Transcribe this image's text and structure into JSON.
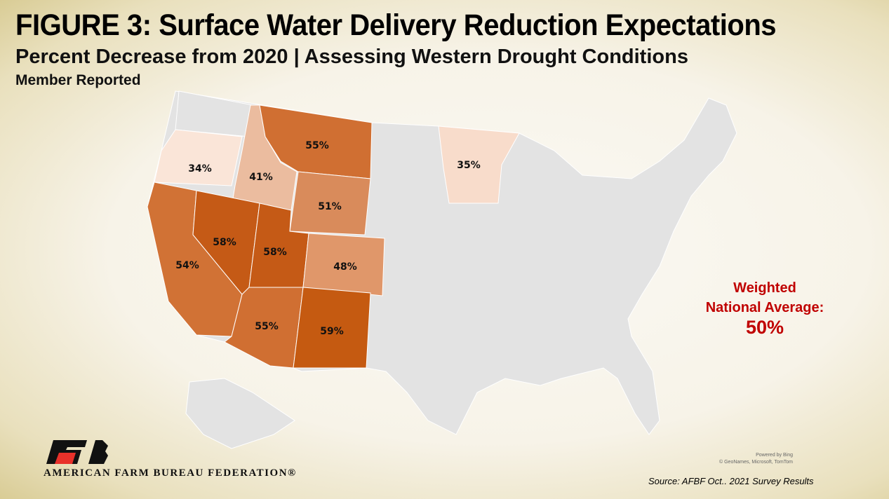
{
  "header": {
    "title": "FIGURE 3: Surface Water Delivery Reduction Expectations",
    "subtitle": "Percent Decrease from 2020 | Assessing Western Drought Conditions",
    "note": "Member Reported"
  },
  "states": {
    "OR": {
      "value": "34%",
      "color": "#fae5d8"
    },
    "ID": {
      "value": "41%",
      "color": "#ebbc9f"
    },
    "MT": {
      "value": "55%",
      "color": "#d06f32"
    },
    "WY": {
      "value": "51%",
      "color": "#d98b5b"
    },
    "CA": {
      "value": "54%",
      "color": "#d17235"
    },
    "NV": {
      "value": "58%",
      "color": "#c55a16"
    },
    "UT": {
      "value": "58%",
      "color": "#c55a16"
    },
    "CO": {
      "value": "48%",
      "color": "#e0976a"
    },
    "AZ": {
      "value": "55%",
      "color": "#d06f32"
    },
    "NM": {
      "value": "59%",
      "color": "#c55a11"
    },
    "MN": {
      "value": "35%",
      "color": "#f8dccb"
    }
  },
  "average": {
    "line1": "Weighted",
    "line2": "National Average:",
    "value": "50%",
    "color": "#c00000"
  },
  "attribution": {
    "line1": "Powered by Bing",
    "line2": "© GeoNames, Microsoft, TomTom"
  },
  "source": "Source: AFBF Oct.. 2021 Survey Results",
  "logo": {
    "text": "AMERICAN FARM BUREAU FEDERATION®",
    "mark": "FB"
  }
}
